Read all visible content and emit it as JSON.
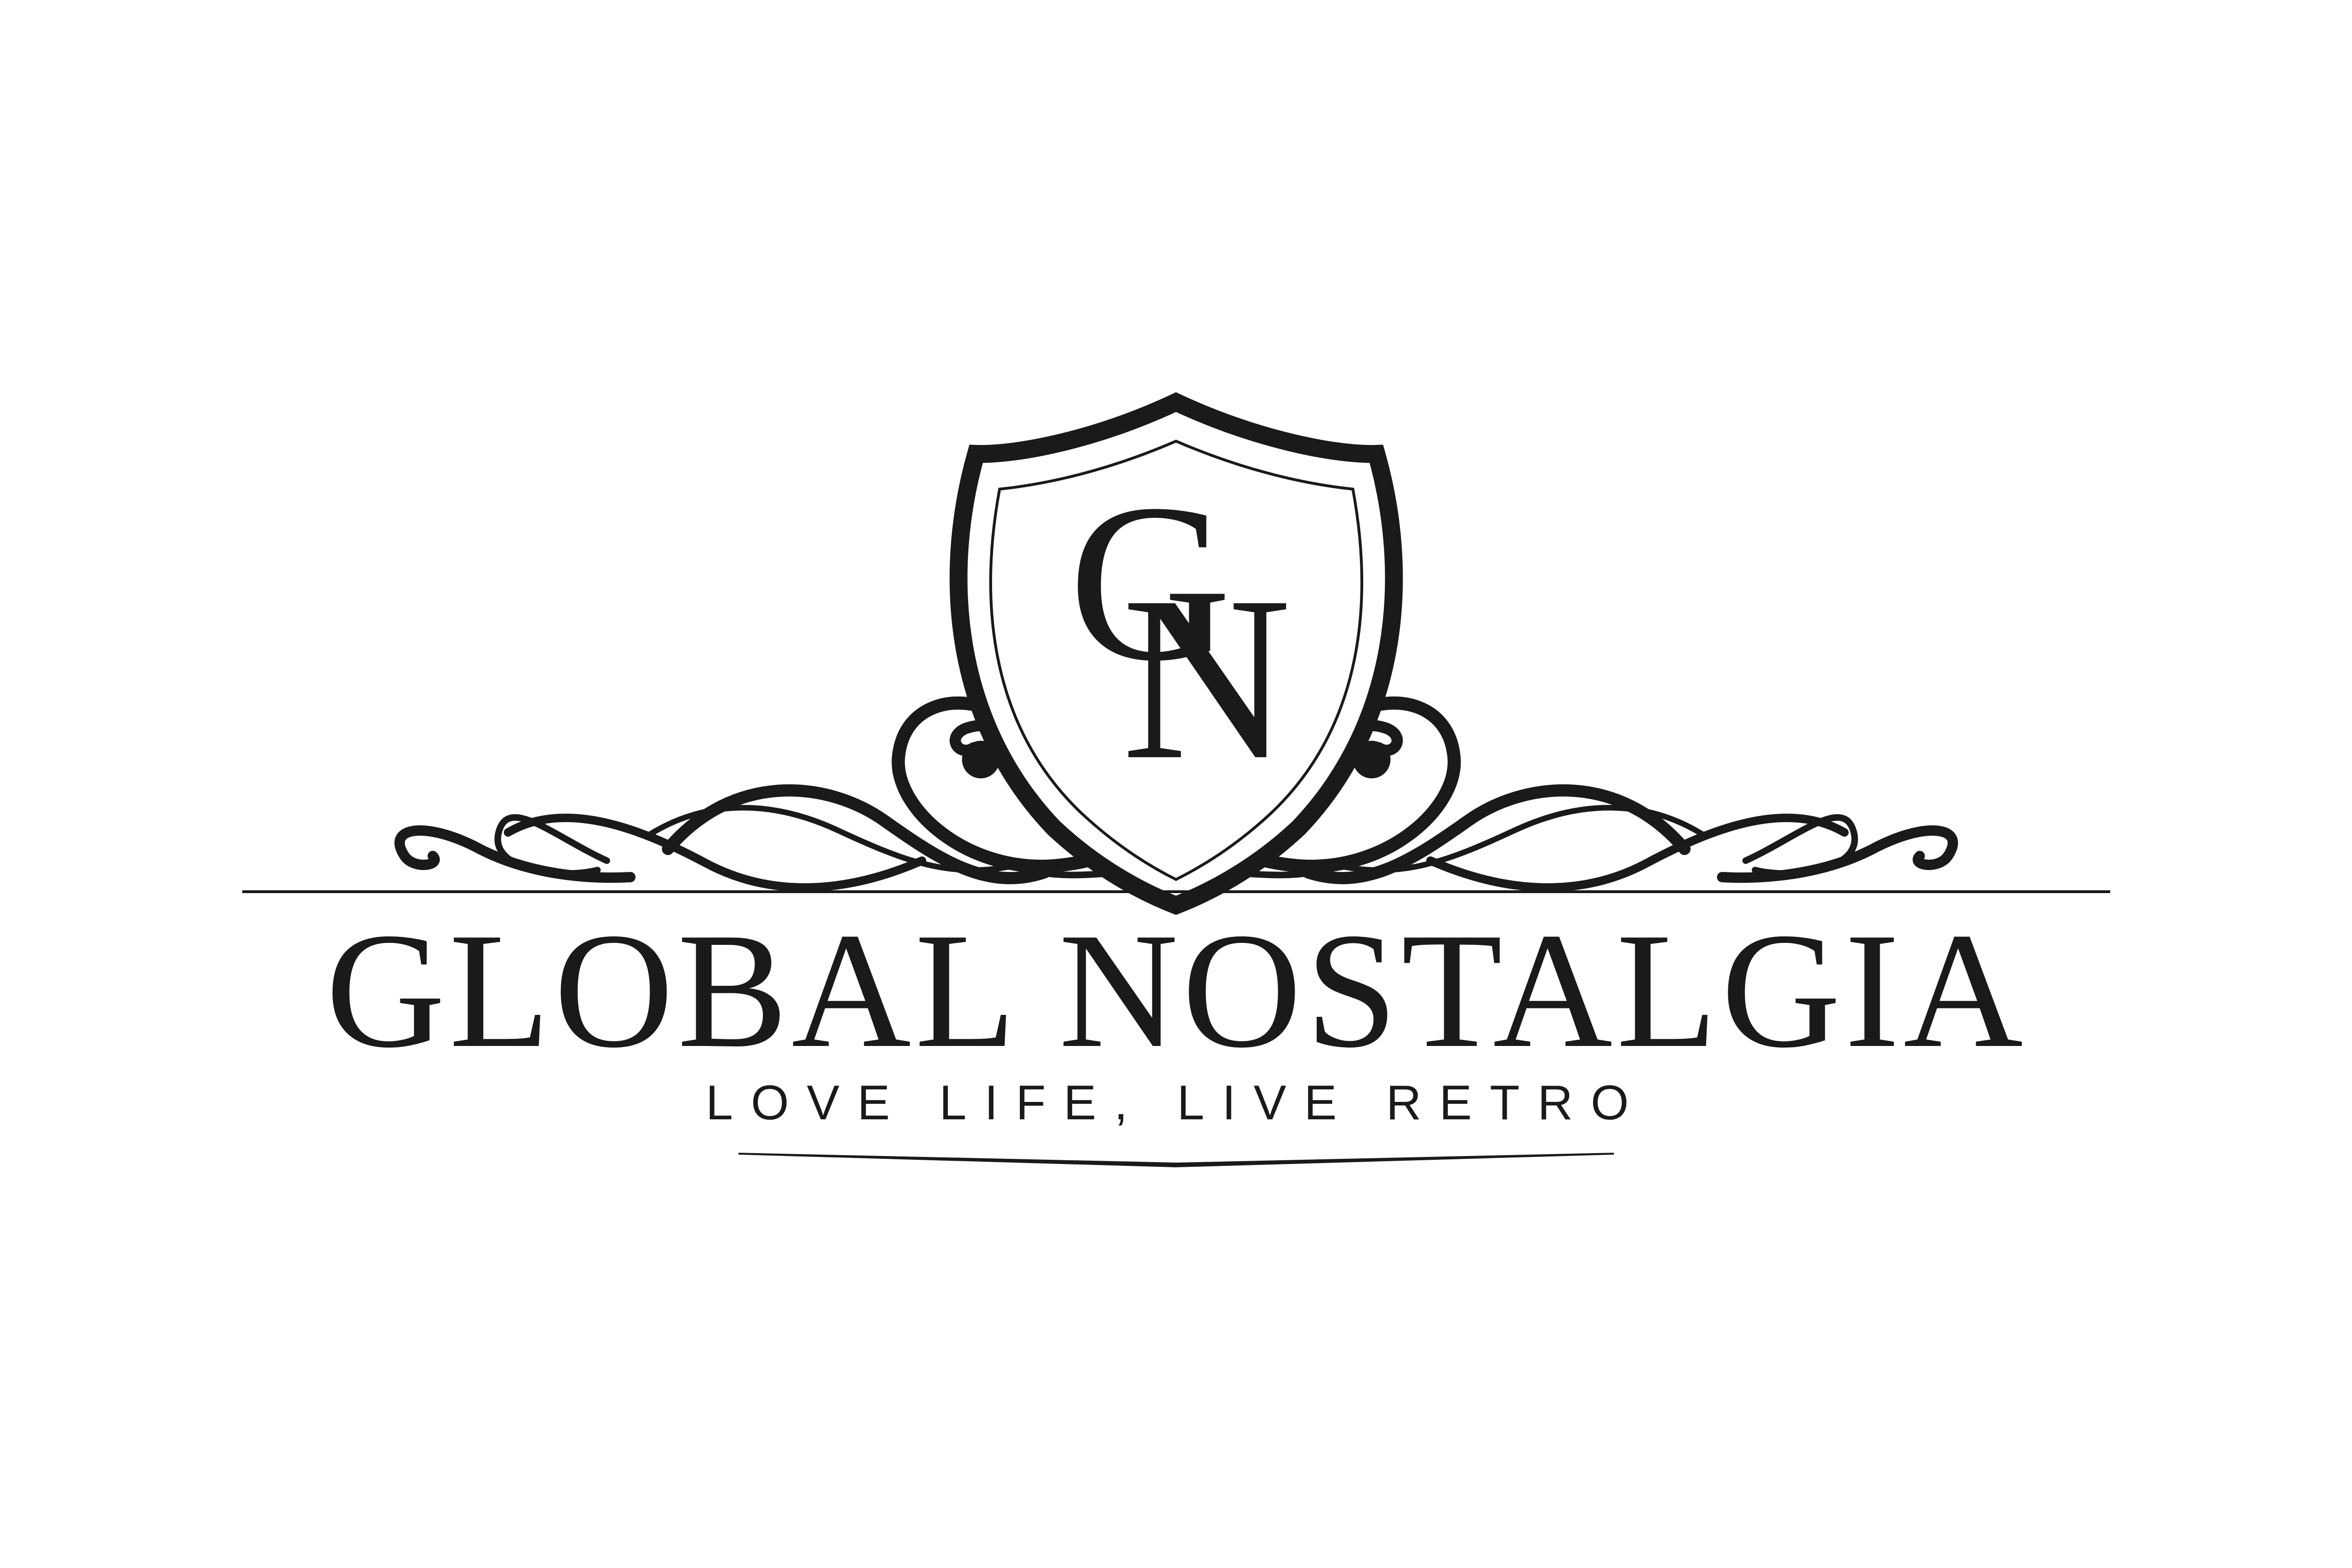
{
  "logo": {
    "monogram": "GN",
    "brand_name": "GLOBAL NOSTALGIA",
    "tagline": "LOVE LIFE, LIVE RETRO",
    "ink_color": "#1a1a1a",
    "background_color": "#ffffff"
  }
}
